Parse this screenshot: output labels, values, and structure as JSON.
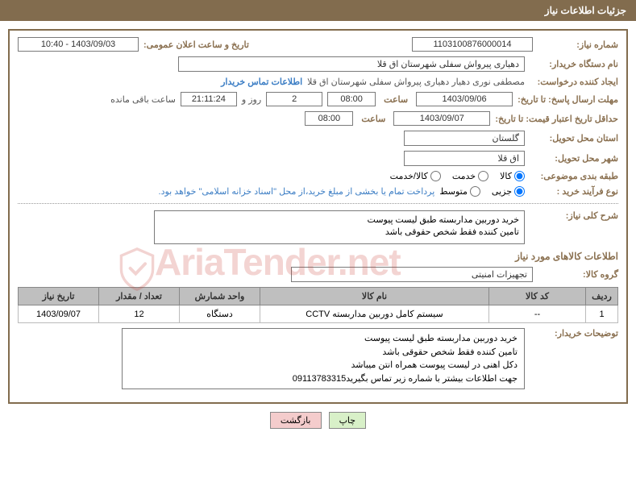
{
  "header": {
    "title": "جزئیات اطلاعات نیاز"
  },
  "need": {
    "number_label": "شماره نیاز:",
    "number": "1103100876000014",
    "announce_label": "تاریخ و ساعت اعلان عمومی:",
    "announce_value": "1403/09/03 - 10:40"
  },
  "buyer": {
    "org_label": "نام دستگاه خریدار:",
    "org_value": "دهیاری پیرواش سفلی شهرستان اق قلا",
    "requester_label": "ایجاد کننده درخواست:",
    "requester_value": "مصطفی نوری دهیار دهیاری پیرواش سفلی شهرستان اق قلا",
    "contact_link": "اطلاعات تماس خریدار"
  },
  "deadline": {
    "response_label": "مهلت ارسال پاسخ: تا تاریخ:",
    "response_date": "1403/09/06",
    "hour_label": "ساعت",
    "response_hour": "08:00",
    "remain_days": "2",
    "day_and": "روز و",
    "remain_time": "21:11:24",
    "remain_suffix": "ساعت باقی مانده",
    "validity_label": "حداقل تاریخ اعتبار قیمت: تا تاریخ:",
    "validity_date": "1403/09/07",
    "validity_hour": "08:00"
  },
  "location": {
    "province_label": "استان محل تحویل:",
    "province": "گلستان",
    "city_label": "شهر محل تحویل:",
    "city": "اق قلا"
  },
  "category": {
    "label": "طبقه بندی موضوعی:",
    "options": [
      "کالا",
      "خدمت",
      "کالا/خدمت"
    ],
    "selected": 0
  },
  "process": {
    "label": "نوع فرآیند خرید :",
    "options": [
      "جزیی",
      "متوسط"
    ],
    "selected": 0,
    "note": "پرداخت تمام یا بخشی از مبلغ خرید،از محل \"اسناد خزانه اسلامی\" خواهد بود."
  },
  "summary": {
    "label": "شرح کلی نیاز:",
    "text": "خرید دوربین مداربسته طبق لیست پیوست\nتامین کننده فقط شخص حقوقی باشد"
  },
  "items_section": {
    "title": "اطلاعات کالاهای مورد نیاز",
    "group_label": "گروه کالا:",
    "group_value": "تجهیزات امنیتی"
  },
  "table": {
    "columns": [
      "ردیف",
      "کد کالا",
      "نام کالا",
      "واحد شمارش",
      "تعداد / مقدار",
      "تاریخ نیاز"
    ],
    "col_widths": [
      "40px",
      "120px",
      "auto",
      "100px",
      "100px",
      "100px"
    ],
    "rows": [
      [
        "1",
        "--",
        "سیستم کامل دوربین مداربسته CCTV",
        "دستگاه",
        "12",
        "1403/09/07"
      ]
    ]
  },
  "buyer_notes": {
    "label": "توضیحات خریدار:",
    "text": "خرید دوربین مداربسته طبق لیست پیوست\nتامین کننده فقط شخص حقوقی باشد\nدکل اهنی در لیست پیوست همراه انتن  میباشد\nجهت اطلاعات بیشتر با شماره زیر تماس بگیرید09113783315"
  },
  "buttons": {
    "print": "چاپ",
    "back": "بازگشت"
  },
  "watermark": "AriaTender.net"
}
